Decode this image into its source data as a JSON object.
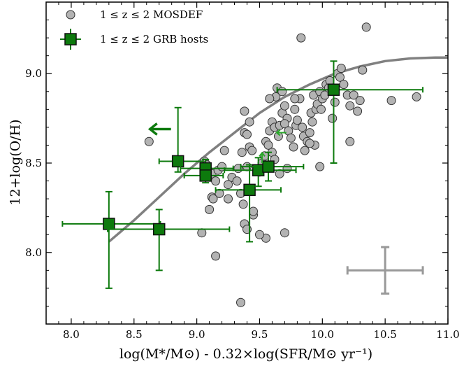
{
  "chart_data": {
    "type": "scatter",
    "title": "",
    "xlabel": "log(M*/M⊙) - 0.32×log(SFR/M⊙ yr⁻¹)",
    "ylabel": "12+log(O/H)",
    "xlim": [
      7.8,
      11.0
    ],
    "ylim": [
      7.6,
      9.4
    ],
    "xticks": [
      8.0,
      8.5,
      9.0,
      9.5,
      10.0,
      10.5,
      11.0
    ],
    "xtick_labels": [
      "8.0",
      "8.5",
      "9.0",
      "9.5",
      "10.0",
      "10.5",
      "11.0"
    ],
    "yticks": [
      8.0,
      8.5,
      9.0
    ],
    "ytick_labels": [
      "8.0",
      "8.5",
      "9.0"
    ],
    "legend_position": "top-left",
    "series": [
      {
        "name": "1 ≤ z ≤ 2 MOSDEF",
        "marker": "circle",
        "color": "#b3b3b3",
        "points": [
          [
            8.62,
            8.62
          ],
          [
            9.04,
            8.11
          ],
          [
            9.06,
            8.51
          ],
          [
            9.08,
            8.49
          ],
          [
            9.12,
            8.44
          ],
          [
            9.15,
            8.4
          ],
          [
            9.17,
            8.46
          ],
          [
            9.2,
            8.48
          ],
          [
            9.22,
            8.57
          ],
          [
            9.25,
            8.38
          ],
          [
            9.28,
            8.42
          ],
          [
            9.1,
            8.24
          ],
          [
            9.12,
            8.31
          ],
          [
            9.18,
            8.33
          ],
          [
            9.13,
            8.3
          ],
          [
            9.15,
            7.98
          ],
          [
            9.35,
            8.33
          ],
          [
            9.37,
            8.27
          ],
          [
            9.33,
            8.47
          ],
          [
            9.36,
            8.56
          ],
          [
            9.4,
            8.48
          ],
          [
            9.42,
            8.59
          ],
          [
            9.44,
            8.57
          ],
          [
            9.38,
            8.67
          ],
          [
            9.4,
            8.66
          ],
          [
            9.38,
            8.79
          ],
          [
            9.42,
            8.73
          ],
          [
            9.38,
            8.16
          ],
          [
            9.4,
            8.13
          ],
          [
            9.45,
            8.21
          ],
          [
            9.48,
            8.46
          ],
          [
            9.5,
            8.45
          ],
          [
            9.52,
            8.5
          ],
          [
            9.54,
            8.54
          ],
          [
            9.55,
            8.62
          ],
          [
            9.57,
            8.6
          ],
          [
            9.58,
            8.68
          ],
          [
            9.6,
            8.73
          ],
          [
            9.62,
            8.7
          ],
          [
            9.65,
            8.65
          ],
          [
            9.66,
            8.71
          ],
          [
            9.68,
            8.78
          ],
          [
            9.6,
            8.56
          ],
          [
            9.62,
            8.52
          ],
          [
            9.63,
            8.87
          ],
          [
            9.64,
            8.92
          ],
          [
            9.7,
            8.82
          ],
          [
            9.72,
            8.75
          ],
          [
            9.7,
            8.72
          ],
          [
            9.73,
            8.68
          ],
          [
            9.75,
            8.64
          ],
          [
            9.77,
            8.59
          ],
          [
            9.78,
            8.8
          ],
          [
            9.79,
            8.71
          ],
          [
            9.8,
            8.74
          ],
          [
            9.82,
            8.86
          ],
          [
            9.84,
            8.7
          ],
          [
            9.85,
            8.65
          ],
          [
            9.86,
            8.57
          ],
          [
            9.88,
            8.62
          ],
          [
            9.9,
            8.67
          ],
          [
            9.91,
            8.78
          ],
          [
            9.92,
            8.73
          ],
          [
            9.93,
            8.88
          ],
          [
            9.94,
            8.6
          ],
          [
            9.95,
            8.8
          ],
          [
            9.96,
            8.83
          ],
          [
            9.98,
            8.9
          ],
          [
            10.0,
            8.86
          ],
          [
            10.02,
            8.88
          ],
          [
            10.03,
            8.94
          ],
          [
            10.05,
            8.92
          ],
          [
            10.06,
            8.96
          ],
          [
            10.08,
            8.75
          ],
          [
            10.1,
            8.84
          ],
          [
            10.12,
            9.0
          ],
          [
            10.14,
            8.98
          ],
          [
            10.15,
            9.03
          ],
          [
            10.17,
            8.94
          ],
          [
            10.2,
            8.88
          ],
          [
            10.22,
            8.82
          ],
          [
            10.25,
            8.88
          ],
          [
            10.28,
            8.79
          ],
          [
            10.3,
            8.85
          ],
          [
            10.32,
            9.02
          ],
          [
            10.35,
            9.26
          ],
          [
            9.83,
            9.2
          ],
          [
            10.55,
            8.85
          ],
          [
            10.75,
            8.87
          ],
          [
            10.22,
            8.62
          ],
          [
            9.98,
            8.48
          ],
          [
            9.7,
            8.11
          ],
          [
            9.55,
            8.08
          ],
          [
            9.5,
            8.1
          ],
          [
            9.35,
            7.72
          ],
          [
            9.45,
            8.23
          ],
          [
            9.32,
            8.4
          ],
          [
            9.25,
            8.3
          ],
          [
            9.66,
            8.44
          ],
          [
            9.72,
            8.47
          ],
          [
            9.58,
            8.86
          ],
          [
            9.68,
            8.9
          ],
          [
            9.78,
            8.86
          ],
          [
            9.99,
            8.8
          ],
          [
            9.9,
            8.61
          ]
        ]
      },
      {
        "name": "1 ≤ z ≤ 2 GRB hosts",
        "marker": "square",
        "color": "#0d7a0d",
        "points": [
          {
            "x": 8.3,
            "y": 8.16,
            "xerr_minus": 0.37,
            "xerr_plus": 0.41,
            "yerr_minus": 0.36,
            "yerr_plus": 0.18
          },
          {
            "x": 8.7,
            "y": 8.13,
            "xerr_minus": 0.41,
            "xerr_plus": 0.56,
            "yerr_minus": 0.23,
            "yerr_plus": 0.11
          },
          {
            "x": 8.85,
            "y": 8.51,
            "xerr_minus": 0.15,
            "xerr_plus": 0.2,
            "yerr_minus": 0.06,
            "yerr_plus": 0.3
          },
          {
            "x": 9.07,
            "y": 8.47,
            "xerr_minus": 0.2,
            "xerr_plus": 0.22,
            "yerr_minus": 0.04,
            "yerr_plus": 0.05
          },
          {
            "x": 9.07,
            "y": 8.43,
            "xerr_minus": 0.17,
            "xerr_plus": 0.14,
            "yerr_minus": 0.04,
            "yerr_plus": 0.05
          },
          {
            "x": 9.42,
            "y": 8.35,
            "xerr_minus": 0.27,
            "xerr_plus": 0.25,
            "yerr_minus": 0.29,
            "yerr_plus": 0.14
          },
          {
            "x": 9.49,
            "y": 8.46,
            "xerr_minus": 0.27,
            "xerr_plus": 0.3,
            "yerr_minus": 0.09,
            "yerr_plus": 0.07
          },
          {
            "x": 9.57,
            "y": 8.48,
            "xerr_minus": 0.22,
            "xerr_plus": 0.28,
            "yerr_minus": 0.08,
            "yerr_plus": 0.08
          },
          {
            "x": 10.09,
            "y": 8.91,
            "xerr_minus": 0.45,
            "xerr_plus": 0.71,
            "yerr_minus": 0.41,
            "yerr_plus": 0.16
          }
        ]
      }
    ],
    "upper_limit_arrow": {
      "x": 8.85,
      "y": 8.69,
      "direction": "left",
      "color": "#0d7a0d"
    },
    "small_arrows": [
      {
        "x": 9.52,
        "y": 8.53,
        "direction": "up",
        "color": "#2aa82a"
      },
      {
        "x": 9.68,
        "y": 8.67,
        "direction": "left",
        "color": "#2aa82a"
      }
    ],
    "relation_curve": {
      "color": "#808080",
      "points": [
        [
          8.3,
          8.06
        ],
        [
          8.5,
          8.18
        ],
        [
          8.7,
          8.31
        ],
        [
          8.9,
          8.44
        ],
        [
          9.1,
          8.56
        ],
        [
          9.3,
          8.67
        ],
        [
          9.5,
          8.78
        ],
        [
          9.7,
          8.87
        ],
        [
          9.9,
          8.94
        ],
        [
          10.1,
          9.0
        ],
        [
          10.3,
          9.04
        ],
        [
          10.5,
          9.07
        ],
        [
          10.7,
          9.085
        ],
        [
          10.9,
          9.09
        ],
        [
          11.0,
          9.09
        ]
      ]
    },
    "typical_error_bar": {
      "x": 10.5,
      "y": 7.9,
      "xerr": 0.3,
      "yerr": 0.13,
      "color": "#999999"
    }
  }
}
